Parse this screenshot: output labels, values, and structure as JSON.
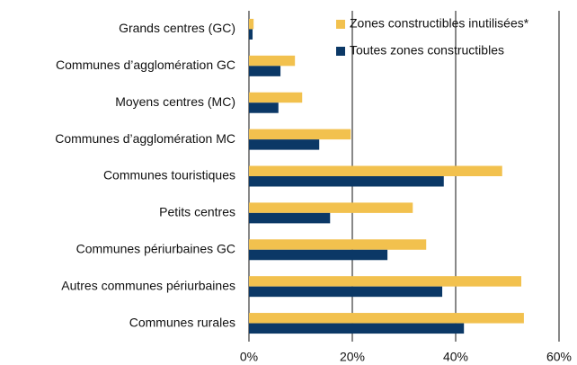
{
  "chart_data": {
    "type": "barh",
    "categories": [
      "Grands centres (GC)",
      "Communes d’agglomération GC",
      "Moyens centres (MC)",
      "Communes d’agglomération MC",
      "Communes touristiques",
      "Petits centres",
      "Communes périurbaines GC",
      "Autres communes périurbaines",
      "Communes rurales"
    ],
    "series": [
      {
        "name": "Zones constructibles inutilisées*",
        "color": "#f2c14e",
        "values": [
          0.9,
          8.9,
          10.3,
          19.7,
          49.0,
          31.7,
          34.3,
          52.7,
          53.2
        ]
      },
      {
        "name": "Toutes zones constructibles",
        "color": "#0b3866",
        "values": [
          0.7,
          6.1,
          5.7,
          13.6,
          37.7,
          15.7,
          26.8,
          37.4,
          41.6
        ]
      }
    ],
    "xlim": [
      0,
      60
    ],
    "xticks": [
      {
        "value": 0,
        "label": "0%"
      },
      {
        "value": 20,
        "label": "20%"
      },
      {
        "value": 40,
        "label": "40%"
      },
      {
        "value": 60,
        "label": "60%"
      }
    ],
    "grid": true,
    "legend": "upper right"
  }
}
